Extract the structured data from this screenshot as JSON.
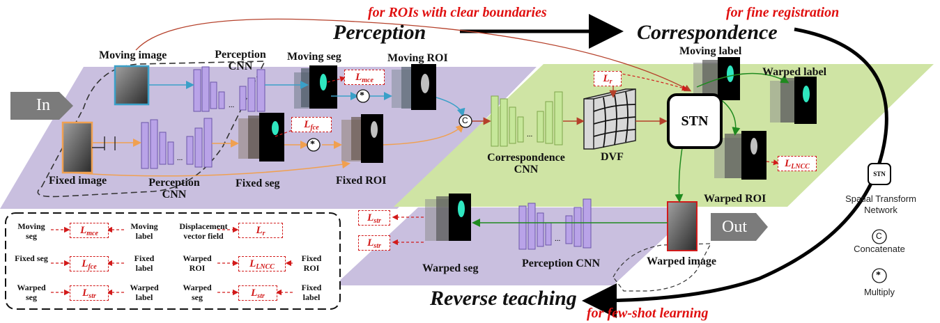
{
  "titles": {
    "perception": "Perception",
    "correspondence": "Correspondence",
    "reverse_teaching": "Reverse teaching"
  },
  "notes": {
    "rois": "for ROIs with clear boundaries",
    "fine_registration": "for fine registration",
    "few_shot": "for few-shot learning"
  },
  "io": {
    "in": "In",
    "out": "Out"
  },
  "labels": {
    "moving_image": "Moving image",
    "fixed_image": "Fixed image",
    "perception_cnn_top": "Perception CNN",
    "perception_cnn_bottom": "Perception CNN",
    "moving_seg": "Moving seg",
    "fixed_seg": "Fixed seg",
    "moving_roi": "Moving ROI",
    "fixed_roi": "Fixed ROI",
    "correspondence_cnn": "Correspondence CNN",
    "dvf": "DVF",
    "moving_label": "Moving label",
    "warped_label": "Warped label",
    "warped_roi": "Warped ROI",
    "warped_image": "Warped image",
    "warped_seg": "Warped seg",
    "perception_cnn_reverse": "Perception CNN",
    "stn": "STN",
    "concat_symbol": "C",
    "multiply_symbol": "*",
    "dots": "..."
  },
  "losses": {
    "mce": {
      "base": "L",
      "sub": "mce"
    },
    "fce": {
      "base": "L",
      "sub": "fce"
    },
    "r": {
      "base": "L",
      "sub": "r"
    },
    "lncc": {
      "base": "L",
      "sub": "LNCC"
    },
    "str1": {
      "base": "L",
      "sub": "str"
    },
    "str2": {
      "base": "L",
      "sub": "str"
    }
  },
  "legend_table": [
    {
      "left": "Moving seg",
      "loss": "mce",
      "right": "Moving label"
    },
    {
      "left": "Fixed seg",
      "loss": "fce",
      "right": "Fixed label"
    },
    {
      "left": "Warped seg",
      "loss": "str",
      "right": "Warped label"
    },
    {
      "left": "Displacement vector field",
      "loss": "r",
      "right": ""
    },
    {
      "left": "Warped ROI",
      "loss": "LNCC",
      "right": "Fixed ROI"
    },
    {
      "left": "Warped seg",
      "loss": "str",
      "right": "Fixed label"
    }
  ],
  "side_legend": {
    "stn_name": "Spatial Transform Network",
    "concat": "Concatenate",
    "multiply": "Multiply"
  },
  "colors": {
    "purple_region": "#c9bfdf",
    "green_region": "#cfe4a4",
    "perception_blocks": "#b9a3e8",
    "correspondence_blocks": "#c6e79a",
    "red_loss": "#d21a1a",
    "cyan_arrow": "#3aa0c8",
    "orange_arrow": "#f0a050",
    "dark_green_arrow": "#1f8a1f",
    "red_arrow": "#b5402a"
  }
}
